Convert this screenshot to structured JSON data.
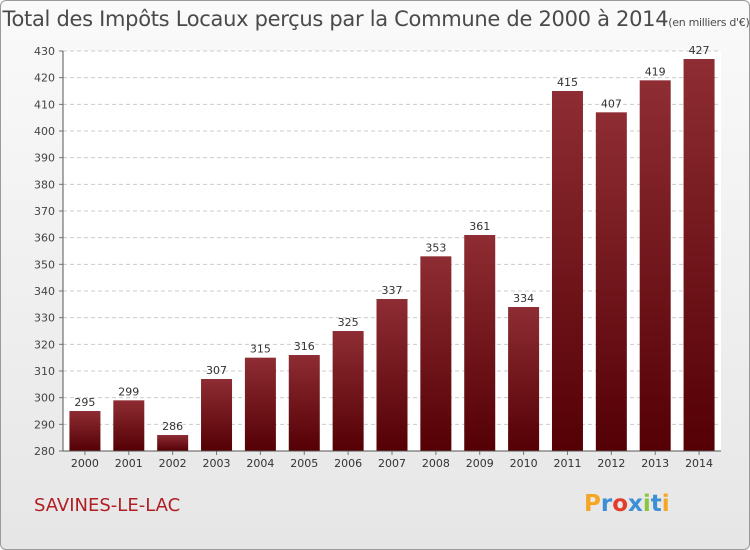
{
  "header": {
    "title": "Total des Impôts Locaux perçus par la Commune de 2000 à 2014",
    "unit": "(en milliers d'€)"
  },
  "commune": "SAVINES-LE-LAC",
  "logo": {
    "letters": [
      "P",
      "r",
      "o",
      "x",
      "i",
      "t",
      "i"
    ]
  },
  "chart_data": {
    "type": "bar",
    "title": "Total des Impôts Locaux perçus par la Commune de 2000 à 2014",
    "xlabel": "",
    "ylabel": "",
    "ylim": [
      280,
      430
    ],
    "yticks": [
      280,
      290,
      300,
      310,
      320,
      330,
      340,
      350,
      360,
      370,
      380,
      390,
      400,
      410,
      420,
      430
    ],
    "grid": true,
    "categories": [
      "2000",
      "2001",
      "2002",
      "2003",
      "2004",
      "2005",
      "2006",
      "2007",
      "2008",
      "2009",
      "2010",
      "2011",
      "2012",
      "2013",
      "2014"
    ],
    "values": [
      295,
      299,
      286,
      307,
      315,
      316,
      325,
      337,
      353,
      361,
      334,
      415,
      407,
      419,
      427
    ],
    "bar_color": "#7a1518"
  }
}
